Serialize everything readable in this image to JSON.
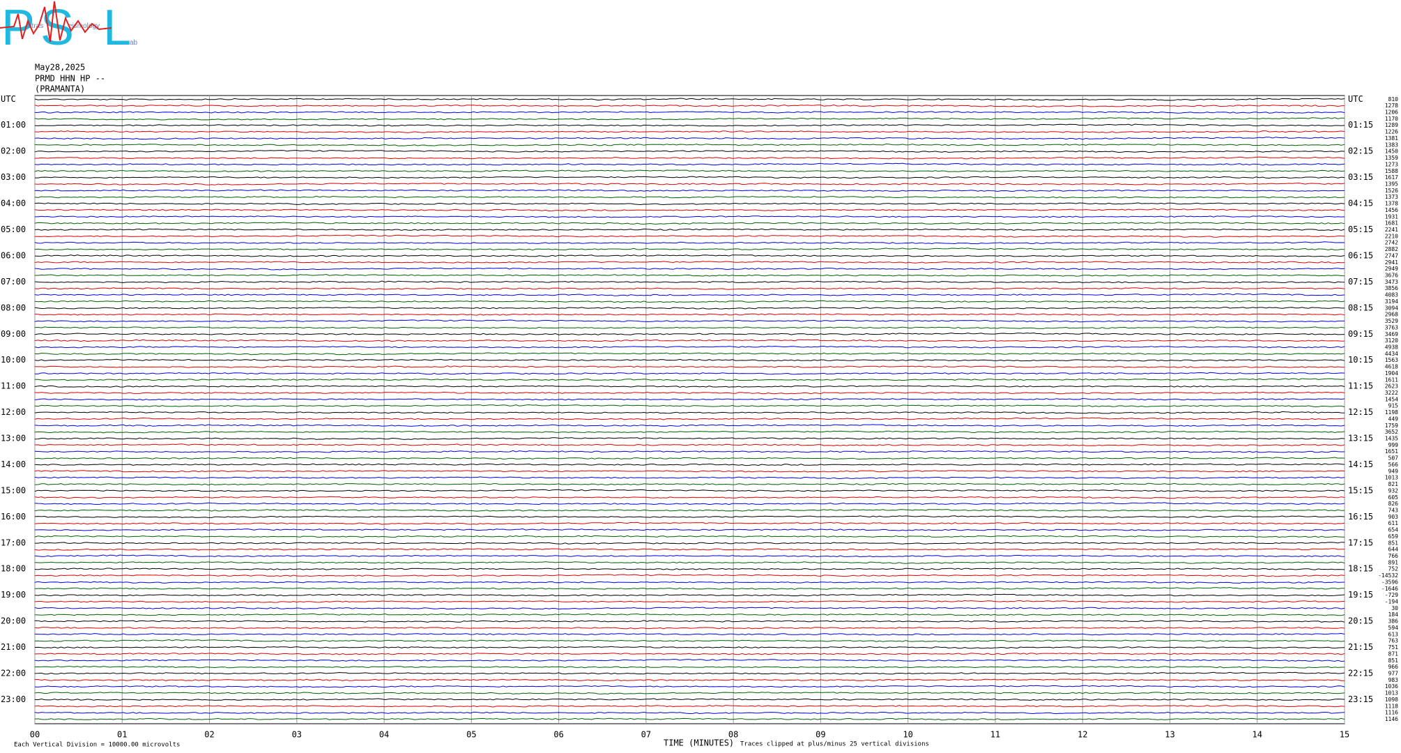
{
  "logo": {
    "letters": [
      "P",
      "S",
      "L"
    ],
    "small": [
      "atras",
      "eismology",
      "ab"
    ]
  },
  "header": {
    "date": "May28,2025",
    "station": "PRMD HHN HP --",
    "name": "(PRAMANTA)"
  },
  "left_labels": [
    "UTC",
    "01:00",
    "02:00",
    "03:00",
    "04:00",
    "05:00",
    "06:00",
    "07:00",
    "08:00",
    "09:00",
    "10:00",
    "11:00",
    "12:00",
    "13:00",
    "14:00",
    "15:00",
    "16:00",
    "17:00",
    "18:00",
    "19:00",
    "20:00",
    "21:00",
    "22:00",
    "23:00"
  ],
  "right_labels": [
    "UTC",
    "01:15",
    "02:15",
    "03:15",
    "04:15",
    "05:15",
    "06:15",
    "07:15",
    "08:15",
    "09:15",
    "10:15",
    "11:15",
    "12:15",
    "13:15",
    "14:15",
    "15:15",
    "16:15",
    "17:15",
    "18:15",
    "19:15",
    "20:15",
    "21:15",
    "22:15",
    "23:15"
  ],
  "trace_values": [
    810,
    1278,
    1206,
    1170,
    1289,
    1226,
    1381,
    1383,
    1450,
    1359,
    1273,
    1588,
    1617,
    1395,
    1526,
    1373,
    1378,
    1456,
    1931,
    1681,
    2241,
    2210,
    2742,
    2882,
    2747,
    2941,
    2949,
    3676,
    3473,
    3856,
    4083,
    3194,
    3094,
    2968,
    3529,
    3763,
    3469,
    3120,
    4938,
    4434,
    1563,
    4618,
    1904,
    1611,
    2623,
    3222,
    1454,
    915,
    1198,
    449,
    1759,
    3652,
    1435,
    999,
    1651,
    507,
    566,
    949,
    1013,
    821,
    932,
    605,
    826,
    743,
    903,
    611,
    654,
    659,
    851,
    644,
    766,
    891,
    752,
    -14532,
    -3596,
    -1646,
    -729,
    -194,
    30,
    184,
    386,
    594,
    613,
    763,
    751,
    871,
    851,
    966,
    977,
    983,
    1036,
    1013,
    1098,
    1118,
    1116,
    1146
  ],
  "x_labels": [
    "00",
    "01",
    "02",
    "03",
    "04",
    "05",
    "06",
    "07",
    "08",
    "09",
    "10",
    "11",
    "12",
    "13",
    "14",
    "15"
  ],
  "footer": {
    "scale": "Each Vertical Division = 10000.00 microvolts",
    "axis_title": "TIME (MINUTES)",
    "clip": "Traces clipped at plus/minus 25 vertical divisions"
  }
}
